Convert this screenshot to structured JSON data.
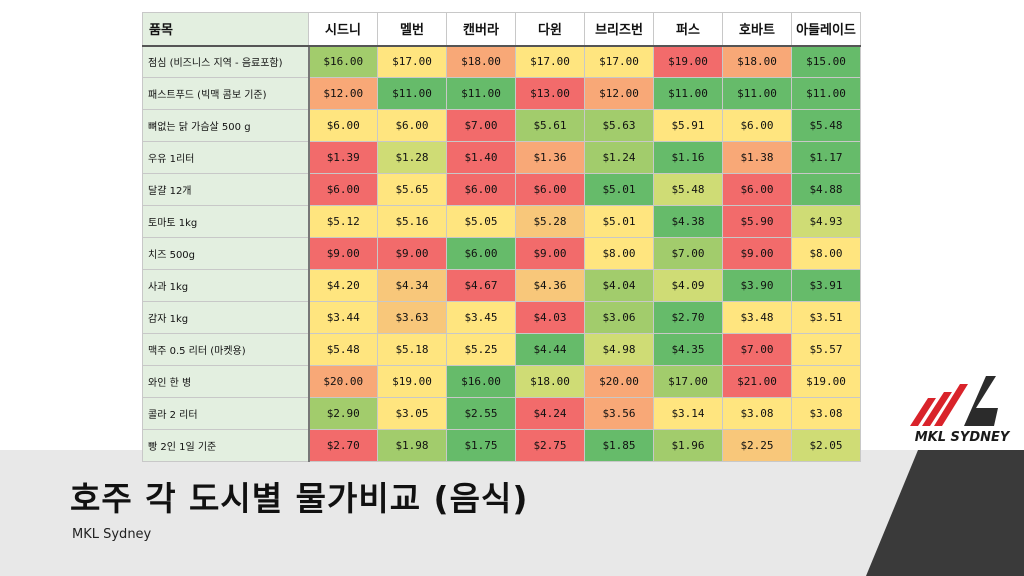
{
  "title": "호주 각 도시별 물가비교 (음식)",
  "subtitle": "MKL Sydney",
  "logo": {
    "text": "MKL SYDNEY",
    "accent": "#d9232a"
  },
  "table": {
    "item_header": "품목",
    "cities": [
      "시드니",
      "멜번",
      "캔버라",
      "다윈",
      "브리즈번",
      "퍼스",
      "호바트",
      "아들레이드"
    ],
    "rows": [
      {
        "item": "점심 (비즈니스 지역 - 음료포함)",
        "prices": [
          "$16.00",
          "$17.00",
          "$18.00",
          "$17.00",
          "$17.00",
          "$19.00",
          "$18.00",
          "$15.00"
        ],
        "colors": [
          "#a2cc6c",
          "#ffe57f",
          "#f8a877",
          "#ffe57f",
          "#ffe57f",
          "#f26b6b",
          "#f8a877",
          "#66bb6a"
        ]
      },
      {
        "item": "패스트푸드 (빅맥 콤보 기준)",
        "prices": [
          "$12.00",
          "$11.00",
          "$11.00",
          "$13.00",
          "$12.00",
          "$11.00",
          "$11.00",
          "$11.00"
        ],
        "colors": [
          "#f8a877",
          "#66bb6a",
          "#66bb6a",
          "#f26b6b",
          "#f8a877",
          "#66bb6a",
          "#66bb6a",
          "#66bb6a"
        ]
      },
      {
        "item": "뼈없는 닭 가슴살 500 g",
        "prices": [
          "$6.00",
          "$6.00",
          "$7.00",
          "$5.61",
          "$5.63",
          "$5.91",
          "$6.00",
          "$5.48"
        ],
        "colors": [
          "#ffe57f",
          "#ffe57f",
          "#f26b6b",
          "#a2cc6c",
          "#a2cc6c",
          "#ffe57f",
          "#ffe57f",
          "#66bb6a"
        ]
      },
      {
        "item": "우유 1리터",
        "prices": [
          "$1.39",
          "$1.28",
          "$1.40",
          "$1.36",
          "$1.24",
          "$1.16",
          "$1.38",
          "$1.17"
        ],
        "colors": [
          "#f26b6b",
          "#cfdc75",
          "#f26b6b",
          "#f8a877",
          "#a2cc6c",
          "#66bb6a",
          "#f8a877",
          "#66bb6a"
        ]
      },
      {
        "item": "달걀 12개",
        "prices": [
          "$6.00",
          "$5.65",
          "$6.00",
          "$6.00",
          "$5.01",
          "$5.48",
          "$6.00",
          "$4.88"
        ],
        "colors": [
          "#f26b6b",
          "#ffe57f",
          "#f26b6b",
          "#f26b6b",
          "#66bb6a",
          "#cfdc75",
          "#f26b6b",
          "#66bb6a"
        ]
      },
      {
        "item": "토마토 1kg",
        "prices": [
          "$5.12",
          "$5.16",
          "$5.05",
          "$5.28",
          "$5.01",
          "$4.38",
          "$5.90",
          "$4.93"
        ],
        "colors": [
          "#ffe57f",
          "#ffe57f",
          "#ffe57f",
          "#f8c77a",
          "#ffe57f",
          "#66bb6a",
          "#f26b6b",
          "#cfdc75"
        ]
      },
      {
        "item": "치즈 500g",
        "prices": [
          "$9.00",
          "$9.00",
          "$6.00",
          "$9.00",
          "$8.00",
          "$7.00",
          "$9.00",
          "$8.00"
        ],
        "colors": [
          "#f26b6b",
          "#f26b6b",
          "#66bb6a",
          "#f26b6b",
          "#ffe57f",
          "#a2cc6c",
          "#f26b6b",
          "#ffe57f"
        ]
      },
      {
        "item": "사과 1kg",
        "prices": [
          "$4.20",
          "$4.34",
          "$4.67",
          "$4.36",
          "$4.04",
          "$4.09",
          "$3.90",
          "$3.91"
        ],
        "colors": [
          "#ffe57f",
          "#f8c77a",
          "#f26b6b",
          "#f8c77a",
          "#a2cc6c",
          "#cfdc75",
          "#66bb6a",
          "#66bb6a"
        ]
      },
      {
        "item": "감자 1kg",
        "prices": [
          "$3.44",
          "$3.63",
          "$3.45",
          "$4.03",
          "$3.06",
          "$2.70",
          "$3.48",
          "$3.51"
        ],
        "colors": [
          "#ffe57f",
          "#f8c77a",
          "#ffe57f",
          "#f26b6b",
          "#a2cc6c",
          "#66bb6a",
          "#ffe57f",
          "#ffe57f"
        ]
      },
      {
        "item": "맥주 0.5 리터 (마켓용)",
        "prices": [
          "$5.48",
          "$5.18",
          "$5.25",
          "$4.44",
          "$4.98",
          "$4.35",
          "$7.00",
          "$5.57"
        ],
        "colors": [
          "#ffe57f",
          "#ffe57f",
          "#ffe57f",
          "#66bb6a",
          "#cfdc75",
          "#66bb6a",
          "#f26b6b",
          "#ffe57f"
        ]
      },
      {
        "item": "와인 한 병",
        "prices": [
          "$20.00",
          "$19.00",
          "$16.00",
          "$18.00",
          "$20.00",
          "$17.00",
          "$21.00",
          "$19.00"
        ],
        "colors": [
          "#f8a877",
          "#ffe57f",
          "#66bb6a",
          "#cfdc75",
          "#f8a877",
          "#a2cc6c",
          "#f26b6b",
          "#ffe57f"
        ]
      },
      {
        "item": "콜라 2 리터",
        "prices": [
          "$2.90",
          "$3.05",
          "$2.55",
          "$4.24",
          "$3.56",
          "$3.14",
          "$3.08",
          "$3.08"
        ],
        "colors": [
          "#a2cc6c",
          "#ffe57f",
          "#66bb6a",
          "#f26b6b",
          "#f8a877",
          "#ffe57f",
          "#ffe57f",
          "#ffe57f"
        ]
      },
      {
        "item": "빵 2인 1일 기준",
        "prices": [
          "$2.70",
          "$1.98",
          "$1.75",
          "$2.75",
          "$1.85",
          "$1.96",
          "$2.25",
          "$2.05"
        ],
        "colors": [
          "#f26b6b",
          "#a2cc6c",
          "#66bb6a",
          "#f26b6b",
          "#66bb6a",
          "#a2cc6c",
          "#f8c77a",
          "#cfdc75"
        ]
      }
    ]
  }
}
